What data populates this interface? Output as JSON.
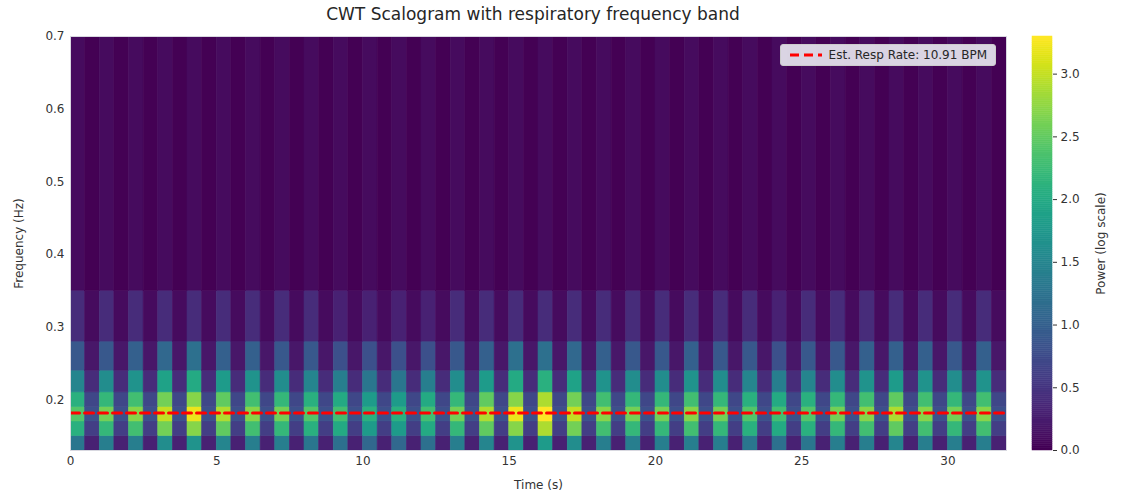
{
  "chart_data": {
    "type": "heatmap",
    "title": "CWT Scalogram with respiratory frequency band",
    "x_label": "Time (s)",
    "y_label": "Frequency (Hz)",
    "xlim": [
      0,
      32
    ],
    "xticks": [
      0,
      5,
      10,
      15,
      20,
      25,
      30
    ],
    "ylim": [
      0.13,
      0.7
    ],
    "yticks": [
      0.2,
      0.3,
      0.4,
      0.5,
      0.6,
      0.7
    ],
    "grid": false,
    "legend": "upper right",
    "series": [
      {
        "name": "Est. Resp Rate: 10.91 BPM",
        "type": "line",
        "color": "#ff0000",
        "line_style": "dashed",
        "x": [
          0,
          32
        ],
        "values": [
          0.1818,
          0.1818
        ]
      }
    ],
    "cells": {
      "x_edges": [
        0,
        0.5,
        1,
        1.5,
        2,
        2.5,
        3,
        3.5,
        4,
        4.5,
        5,
        5.5,
        6,
        6.5,
        7,
        7.5,
        8,
        8.5,
        9,
        9.5,
        10,
        10.5,
        11,
        11.5,
        12,
        12.5,
        13,
        13.5,
        14,
        14.5,
        15,
        15.5,
        16,
        16.5,
        17,
        17.5,
        18,
        18.5,
        19,
        19.5,
        20,
        20.5,
        21,
        21.5,
        22,
        22.5,
        23,
        23.5,
        24,
        24.5,
        25,
        25.5,
        26,
        26.5,
        27,
        27.5,
        28,
        28.5,
        29,
        29.5,
        30,
        30.5,
        31,
        31.5,
        32
      ],
      "y_edges": [
        0.13,
        0.15,
        0.17,
        0.19,
        0.21,
        0.24,
        0.28,
        0.35,
        0.7
      ],
      "z": [
        [
          1.3,
          0.3,
          1.4,
          0.3,
          1.4,
          0.3,
          1.6,
          0.3,
          1.7,
          0.3,
          1.5,
          0.3,
          1.4,
          0.3,
          1.4,
          0.3,
          1.3,
          0.3,
          1.2,
          0.3,
          1.1,
          0.3,
          1.1,
          0.3,
          1.2,
          0.3,
          1.4,
          0.3,
          1.5,
          0.3,
          1.7,
          0.3,
          1.8,
          0.3,
          1.6,
          0.3,
          1.4,
          0.3,
          1.4,
          0.3,
          1.4,
          0.3,
          1.4,
          0.3,
          1.4,
          0.3,
          1.3,
          0.3,
          1.2,
          0.3,
          1.3,
          0.3,
          1.4,
          0.3,
          1.4,
          0.3,
          1.5,
          0.3,
          1.4,
          0.3,
          1.4,
          0.3,
          1.4,
          0.3
        ],
        [
          2.1,
          0.6,
          2.2,
          0.6,
          2.3,
          0.6,
          2.6,
          0.6,
          2.7,
          0.6,
          2.5,
          0.6,
          2.3,
          0.6,
          2.2,
          0.6,
          2.1,
          0.6,
          2.0,
          0.6,
          1.8,
          0.6,
          1.8,
          0.6,
          2.0,
          0.6,
          2.2,
          0.6,
          2.5,
          0.6,
          2.7,
          0.6,
          2.9,
          0.6,
          2.6,
          0.6,
          2.3,
          0.6,
          2.2,
          0.6,
          2.2,
          0.6,
          2.3,
          0.6,
          2.2,
          0.6,
          2.1,
          0.6,
          2.0,
          0.6,
          2.1,
          0.6,
          2.2,
          0.6,
          2.3,
          0.6,
          2.5,
          0.6,
          2.3,
          0.6,
          2.2,
          0.6,
          2.3,
          0.6
        ],
        [
          2.4,
          0.8,
          2.6,
          0.8,
          2.7,
          0.8,
          3.0,
          0.8,
          3.2,
          0.8,
          2.9,
          0.8,
          2.7,
          0.8,
          2.6,
          0.8,
          2.4,
          0.8,
          2.3,
          0.8,
          2.1,
          0.8,
          2.1,
          0.8,
          2.3,
          0.8,
          2.6,
          0.8,
          2.9,
          0.8,
          3.2,
          0.8,
          3.3,
          0.8,
          3.0,
          0.8,
          2.7,
          0.8,
          2.6,
          0.8,
          2.6,
          0.8,
          2.7,
          0.8,
          2.6,
          0.8,
          2.4,
          0.8,
          2.3,
          0.8,
          2.4,
          0.8,
          2.6,
          0.8,
          2.7,
          0.8,
          2.9,
          0.8,
          2.7,
          0.8,
          2.6,
          0.8,
          2.7,
          0.8
        ],
        [
          2.1,
          0.7,
          2.2,
          0.7,
          2.3,
          0.7,
          2.6,
          0.7,
          2.7,
          0.7,
          2.5,
          0.7,
          2.3,
          0.7,
          2.2,
          0.7,
          2.1,
          0.7,
          2.0,
          0.7,
          1.8,
          0.7,
          1.8,
          0.7,
          2.0,
          0.7,
          2.2,
          0.7,
          2.5,
          0.7,
          2.7,
          0.7,
          2.9,
          0.7,
          2.6,
          0.7,
          2.3,
          0.7,
          2.2,
          0.7,
          2.2,
          0.7,
          2.3,
          0.7,
          2.2,
          0.7,
          2.1,
          0.7,
          2.0,
          0.7,
          2.1,
          0.7,
          2.2,
          0.7,
          2.3,
          0.7,
          2.5,
          0.7,
          2.3,
          0.7,
          2.2,
          0.7,
          2.3,
          0.7
        ],
        [
          1.5,
          0.4,
          1.6,
          0.4,
          1.7,
          0.4,
          1.9,
          0.4,
          2.0,
          0.4,
          1.8,
          0.4,
          1.7,
          0.4,
          1.6,
          0.4,
          1.5,
          0.4,
          1.4,
          0.4,
          1.3,
          0.4,
          1.3,
          0.4,
          1.4,
          0.4,
          1.6,
          0.4,
          1.8,
          0.4,
          2.0,
          0.4,
          2.1,
          0.4,
          1.9,
          0.4,
          1.7,
          0.4,
          1.6,
          0.4,
          1.6,
          0.4,
          1.7,
          0.4,
          1.6,
          0.4,
          1.5,
          0.4,
          1.4,
          0.4,
          1.5,
          0.4,
          1.6,
          0.4,
          1.7,
          0.4,
          1.8,
          0.4,
          1.7,
          0.4,
          1.6,
          0.4,
          1.7,
          0.4
        ],
        [
          0.9,
          0.2,
          0.9,
          0.2,
          1.0,
          0.2,
          1.1,
          0.2,
          1.2,
          0.2,
          1.0,
          0.2,
          1.0,
          0.2,
          0.9,
          0.2,
          0.9,
          0.2,
          0.8,
          0.2,
          0.8,
          0.2,
          0.8,
          0.2,
          0.8,
          0.2,
          0.9,
          0.2,
          1.0,
          0.2,
          1.2,
          0.2,
          1.2,
          0.2,
          1.1,
          0.2,
          1.0,
          0.2,
          0.9,
          0.2,
          0.9,
          0.2,
          1.0,
          0.2,
          0.9,
          0.2,
          0.9,
          0.2,
          0.8,
          0.2,
          0.9,
          0.2,
          0.9,
          0.2,
          1.0,
          0.2,
          1.0,
          0.2,
          1.0,
          0.2,
          0.9,
          0.2,
          1.0,
          0.2
        ],
        [
          0.4,
          0.1,
          0.4,
          0.1,
          0.4,
          0.1,
          0.4,
          0.1,
          0.4,
          0.1,
          0.4,
          0.1,
          0.4,
          0.1,
          0.4,
          0.1,
          0.4,
          0.1,
          0.3,
          0.1,
          0.3,
          0.1,
          0.3,
          0.1,
          0.3,
          0.1,
          0.4,
          0.1,
          0.4,
          0.1,
          0.4,
          0.1,
          0.4,
          0.1,
          0.4,
          0.1,
          0.4,
          0.1,
          0.4,
          0.1,
          0.4,
          0.1,
          0.4,
          0.1,
          0.4,
          0.1,
          0.4,
          0.1,
          0.3,
          0.1,
          0.4,
          0.1,
          0.4,
          0.1,
          0.4,
          0.1,
          0.4,
          0.1,
          0.4,
          0.1,
          0.4,
          0.1,
          0.4,
          0.1
        ],
        [
          0.1,
          0.0,
          0.1,
          0.0,
          0.1,
          0.0,
          0.1,
          0.0,
          0.1,
          0.0,
          0.1,
          0.0,
          0.1,
          0.0,
          0.1,
          0.0,
          0.1,
          0.0,
          0.1,
          0.0,
          0.1,
          0.0,
          0.1,
          0.0,
          0.1,
          0.0,
          0.1,
          0.0,
          0.1,
          0.0,
          0.1,
          0.0,
          0.1,
          0.0,
          0.1,
          0.0,
          0.1,
          0.0,
          0.1,
          0.0,
          0.1,
          0.0,
          0.1,
          0.0,
          0.1,
          0.0,
          0.1,
          0.0,
          0.1,
          0.0,
          0.1,
          0.0,
          0.1,
          0.0,
          0.1,
          0.0,
          0.1,
          0.0,
          0.1,
          0.0,
          0.1,
          0.0,
          0.1,
          0.0
        ]
      ]
    },
    "colorbar": {
      "label": "Power (log scale)",
      "lim": [
        0,
        3.3
      ],
      "ticks": [
        {
          "value": 0,
          "label": "0.0"
        },
        {
          "value": 0.5,
          "label": "0.5"
        },
        {
          "value": 1,
          "label": "1.0"
        },
        {
          "value": 1.5,
          "label": "1.5"
        },
        {
          "value": 2,
          "label": "2.0"
        },
        {
          "value": 2.5,
          "label": "2.5"
        },
        {
          "value": 3,
          "label": "3.0"
        }
      ]
    }
  }
}
